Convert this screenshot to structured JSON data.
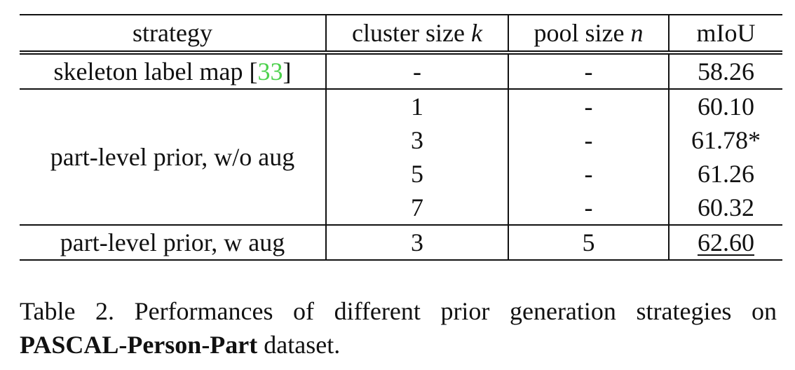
{
  "table": {
    "headers": {
      "strategy": "strategy",
      "cluster_prefix": "cluster size ",
      "cluster_var": "k",
      "pool_prefix": "pool size ",
      "pool_var": "n",
      "miou": "mIoU"
    },
    "rows": [
      {
        "strategy": "skeleton label map [",
        "cite": "33",
        "strategy_suffix": "]",
        "cluster": "-",
        "pool": "-",
        "miou": "58.26"
      },
      {
        "strategy": "part-level prior, w/o aug",
        "cluster": "1",
        "pool": "-",
        "miou": "60.10"
      },
      {
        "cluster": "3",
        "pool": "-",
        "miou": "61.78*"
      },
      {
        "cluster": "5",
        "pool": "-",
        "miou": "61.26"
      },
      {
        "cluster": "7",
        "pool": "-",
        "miou": "60.32"
      },
      {
        "strategy": "part-level prior, w aug",
        "cluster": "3",
        "pool": "5",
        "miou": "62.60"
      }
    ]
  },
  "caption": {
    "prefix": "Table 2. Performances of different prior generation strategies on ",
    "bold": "PASCAL-Person-Part",
    "suffix": " dataset."
  }
}
